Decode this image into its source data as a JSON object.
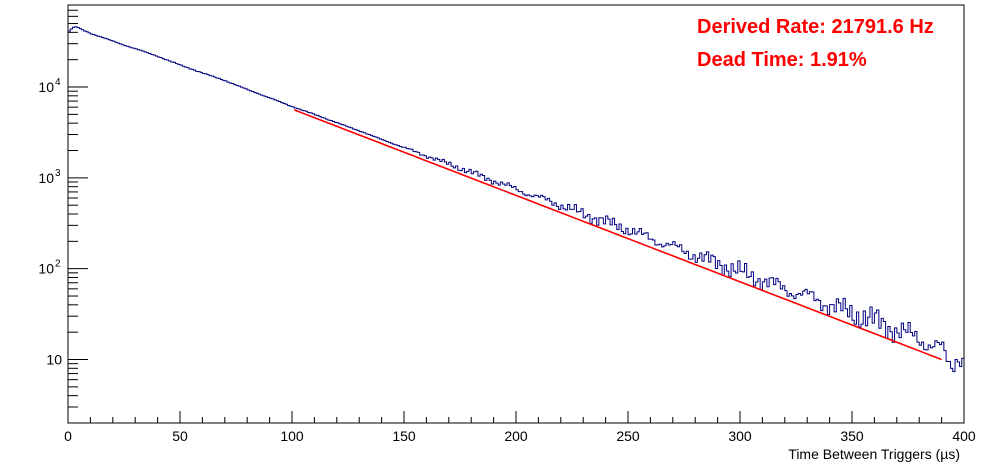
{
  "chart_data": {
    "type": "line",
    "title": "",
    "xlabel": "Time Between Triggers (µs)",
    "ylabel": "",
    "xlim": [
      0,
      400
    ],
    "ylim": [
      2,
      80000
    ],
    "log_y": true,
    "grid": false,
    "x_ticks": [
      {
        "value": 0,
        "label": "0"
      },
      {
        "value": 50,
        "label": "50"
      },
      {
        "value": 100,
        "label": "100"
      },
      {
        "value": 150,
        "label": "150"
      },
      {
        "value": 200,
        "label": "200"
      },
      {
        "value": 250,
        "label": "250"
      },
      {
        "value": 300,
        "label": "300"
      },
      {
        "value": 350,
        "label": "350"
      },
      {
        "value": 400,
        "label": "400"
      }
    ],
    "y_ticks": [
      {
        "value": 10,
        "label": "10",
        "sup": ""
      },
      {
        "value": 100,
        "label": "10",
        "sup": "2"
      },
      {
        "value": 1000,
        "label": "10",
        "sup": "3"
      },
      {
        "value": 10000,
        "label": "10",
        "sup": "4"
      }
    ],
    "series": [
      {
        "kind": "histogram",
        "color": "#000080",
        "x": [
          0,
          2,
          4,
          6,
          8,
          10,
          15,
          20,
          25,
          30,
          40,
          50,
          60,
          70,
          80,
          90,
          100,
          110,
          120,
          130,
          140,
          150,
          160,
          170,
          180,
          190,
          200,
          210,
          220,
          230,
          240,
          250,
          260,
          270,
          280,
          290,
          300,
          310,
          320,
          330,
          340,
          350,
          360,
          370,
          380,
          390,
          394,
          398,
          400
        ],
        "y": [
          40000,
          45000,
          46000,
          43000,
          41000,
          39000,
          35500,
          32000,
          29000,
          26500,
          21800,
          17500,
          14300,
          11800,
          9400,
          7600,
          6100,
          5000,
          4050,
          3300,
          2650,
          2150,
          1750,
          1420,
          1150,
          930,
          750,
          610,
          500,
          400,
          330,
          270,
          215,
          175,
          140,
          115,
          92,
          75,
          60,
          50,
          40,
          32,
          27,
          21,
          17,
          13,
          8,
          12,
          9
        ]
      },
      {
        "kind": "fit",
        "color": "#ff0000",
        "x": [
          101,
          390
        ],
        "y": [
          5600,
          10
        ]
      }
    ],
    "annotations": [
      {
        "text": "Derived Rate: 21791.6 Hz",
        "color": "#ff0000"
      },
      {
        "text": "Dead Time: 1.91%",
        "color": "#ff0000"
      }
    ]
  }
}
